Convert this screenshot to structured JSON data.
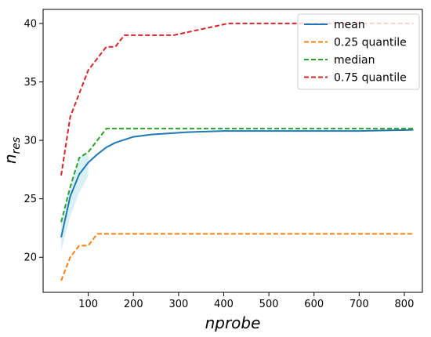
{
  "chart_data": {
    "type": "line",
    "xlabel": "nprobe",
    "ylabel_base": "n",
    "ylabel_sub": "res",
    "xlim": [
      0,
      840
    ],
    "ylim": [
      17,
      41.2
    ],
    "xticks": [
      100,
      200,
      300,
      400,
      500,
      600,
      700,
      800
    ],
    "yticks": [
      20,
      25,
      30,
      35,
      40
    ],
    "legend_position": "top-right",
    "band": {
      "x": [
        40,
        60,
        80,
        100
      ],
      "lower": [
        20.5,
        23.5,
        25.5,
        27.0
      ],
      "upper": [
        23.0,
        26.0,
        28.5,
        29.0
      ],
      "color": "#bfe7ee"
    },
    "series": [
      {
        "name": "mean",
        "color": "#1f77b4",
        "dashed": false,
        "x": [
          40,
          60,
          80,
          100,
          120,
          140,
          160,
          200,
          240,
          280,
          320,
          400,
          500,
          600,
          700,
          820
        ],
        "y": [
          21.7,
          25.2,
          27.1,
          28.1,
          28.8,
          29.4,
          29.8,
          30.3,
          30.5,
          30.6,
          30.7,
          30.8,
          30.8,
          30.8,
          30.8,
          30.9
        ]
      },
      {
        "name": "0.25 quantile",
        "color": "#ff7f0e",
        "dashed": true,
        "x": [
          40,
          60,
          80,
          100,
          120,
          820
        ],
        "y": [
          18,
          20,
          21,
          21,
          22,
          22
        ]
      },
      {
        "name": "median",
        "color": "#2ca02c",
        "dashed": true,
        "x": [
          40,
          60,
          80,
          100,
          140,
          820
        ],
        "y": [
          23,
          26,
          28.5,
          29,
          31,
          31
        ]
      },
      {
        "name": "0.75 quantile",
        "color": "#d62728",
        "dashed": true,
        "x": [
          40,
          60,
          80,
          100,
          140,
          160,
          180,
          290,
          410,
          820
        ],
        "y": [
          27,
          32,
          34,
          36,
          38,
          38,
          39,
          39,
          40,
          40
        ]
      }
    ]
  }
}
